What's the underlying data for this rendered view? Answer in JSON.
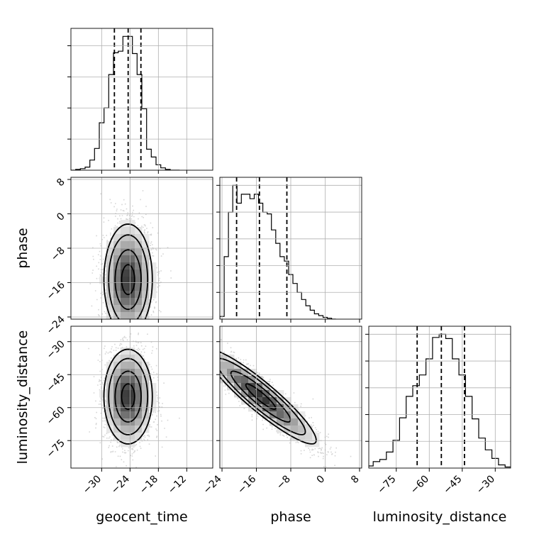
{
  "chart_data": {
    "type": "corner",
    "parameters": [
      "geocent_time",
      "phase",
      "luminosity_distance"
    ],
    "ranges": {
      "geocent_time": [
        -36.5,
        -6.5
      ],
      "phase": [
        -24.5,
        8.5
      ],
      "luminosity_distance": [
        -87.5,
        -23
      ]
    },
    "ticks": {
      "geocent_time": [
        -30,
        -24,
        -18,
        -12
      ],
      "phase": [
        -24,
        -16,
        -8,
        0,
        8
      ],
      "luminosity_distance": [
        -75,
        -60,
        -45,
        -30
      ]
    },
    "tick_labels": {
      "geocent_time": [
        "−30",
        "−24",
        "−18",
        "−12"
      ],
      "phase": [
        "−24",
        "−16",
        "−8",
        "0",
        "8"
      ],
      "luminosity_distance": [
        "−75",
        "−60",
        "−45",
        "−30"
      ]
    },
    "quantiles": {
      "geocent_time": [
        -27.3,
        -24.4,
        -21.7
      ],
      "phase": [
        -20.6,
        -15.3,
        -8.9
      ],
      "luminosity_distance": [
        -65.5,
        -54.5,
        -44
      ]
    },
    "histograms": {
      "geocent_time": {
        "x": [
          -36,
          -35,
          -34,
          -33,
          -32,
          -31,
          -30,
          -29,
          -28,
          -27,
          -26,
          -25,
          -24,
          -23,
          -22,
          -21,
          -20,
          -19,
          -18,
          -17,
          -16,
          -15,
          -14
        ],
        "counts": [
          0,
          1,
          2,
          4,
          13,
          28,
          61,
          80,
          123,
          151,
          153,
          172,
          172,
          150,
          123,
          79,
          27,
          17,
          7,
          3,
          1,
          0,
          0
        ]
      },
      "phase": {
        "x": [
          -24,
          -23,
          -22,
          -21,
          -20,
          -19,
          -18,
          -17,
          -16,
          -15,
          -14,
          -13,
          -12,
          -11,
          -10,
          -9,
          -8,
          -7,
          -6,
          -5,
          -4,
          -3,
          -2,
          -1,
          0,
          1,
          2
        ],
        "counts": [
          3,
          70,
          120,
          150,
          130,
          140,
          140,
          135,
          140,
          130,
          120,
          118,
          100,
          85,
          70,
          65,
          50,
          40,
          30,
          22,
          15,
          10,
          6,
          4,
          2,
          1,
          0
        ]
      },
      "luminosity_distance": {
        "x": [
          -87,
          -84,
          -81,
          -78,
          -75,
          -72,
          -69,
          -66,
          -63,
          -60,
          -57,
          -54,
          -51,
          -48,
          -45,
          -42,
          -39,
          -36,
          -33,
          -30,
          -27,
          -24
        ],
        "counts": [
          2,
          6,
          8,
          15,
          26,
          47,
          67,
          77,
          87,
          102,
          122,
          125,
          121,
          102,
          87,
          67,
          46,
          28,
          17,
          9,
          3,
          1
        ]
      }
    },
    "density_2d": [
      {
        "x": "geocent_time",
        "y": "phase",
        "center": [
          -24.4,
          -15.3
        ],
        "sigma": [
          2.5,
          6.3
        ],
        "rho": 0.0
      },
      {
        "x": "geocent_time",
        "y": "luminosity_distance",
        "center": [
          -24.4,
          -55
        ],
        "sigma": [
          2.5,
          10.5
        ],
        "rho": 0.0
      },
      {
        "x": "phase",
        "y": "luminosity_distance",
        "center": [
          -15,
          -55
        ],
        "sigma": [
          6.3,
          10.5
        ],
        "rho": -0.92
      }
    ],
    "grid": true,
    "xlabel": [
      "geocent_time",
      "phase",
      "luminosity_distance"
    ],
    "ylabel": [
      "",
      "phase",
      "luminosity_distance"
    ]
  }
}
